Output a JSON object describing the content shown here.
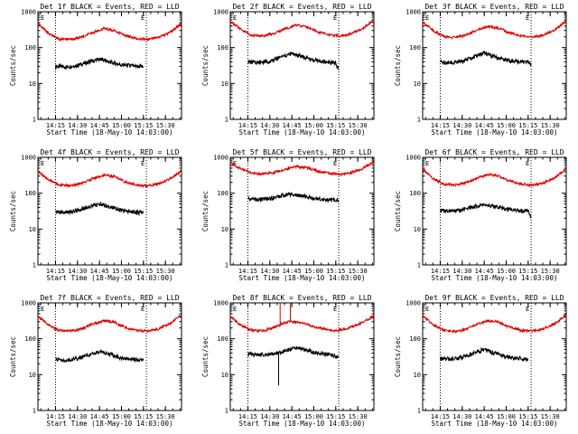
{
  "chart_data": [
    {
      "type": "line",
      "title": "Det 1f BLACK = Events, RED = LLD",
      "xlabel": "Start Time (18-May-10 14:03:00)",
      "ylabel": "Counts/sec",
      "yscale": "log",
      "ylim": [
        1,
        1000
      ],
      "xlim": [
        "14:03",
        "15:41"
      ],
      "xticks": [
        "14:15",
        "14:30",
        "14:45",
        "15:00",
        "15:15",
        "15:30"
      ],
      "yticks": [
        "1",
        "10",
        "100",
        "1000"
      ],
      "day_night_marks": [
        "E",
        "E"
      ],
      "dotted_lines_at": [
        "14:15",
        "15:17"
      ],
      "series": [
        {
          "color": "#000000",
          "x": [
            "14:15",
            "14:22",
            "14:30",
            "14:38",
            "14:45",
            "14:52",
            "15:00",
            "15:08",
            "15:15"
          ],
          "values": [
            30,
            29,
            32,
            40,
            48,
            40,
            33,
            31,
            29
          ]
        },
        {
          "color": "#e00000",
          "x": [
            "14:03",
            "14:10",
            "14:18",
            "14:25",
            "14:32",
            "14:40",
            "14:48",
            "14:55",
            "15:02",
            "15:10",
            "15:18",
            "15:25",
            "15:33",
            "15:41"
          ],
          "values": [
            480,
            250,
            170,
            170,
            190,
            260,
            340,
            300,
            220,
            180,
            170,
            190,
            260,
            480
          ]
        }
      ]
    },
    {
      "type": "line",
      "title": "Det 2f BLACK = Events, RED = LLD",
      "xlabel": "Start Time (18-May-10 14:03:00)",
      "ylabel": "Counts/sec",
      "yscale": "log",
      "ylim": [
        1,
        1000
      ],
      "xlim": [
        "14:03",
        "15:41"
      ],
      "xticks": [
        "14:15",
        "14:30",
        "14:45",
        "15:00",
        "15:15",
        "15:30"
      ],
      "yticks": [
        "1",
        "10",
        "100",
        "1000"
      ],
      "day_night_marks": [
        "E",
        "E"
      ],
      "dotted_lines_at": [
        "14:15",
        "15:17"
      ],
      "series": [
        {
          "color": "#000000",
          "x": [
            "14:15",
            "14:22",
            "14:30",
            "14:38",
            "14:45",
            "14:52",
            "15:00",
            "15:08",
            "15:15",
            "15:17"
          ],
          "values": [
            40,
            38,
            42,
            55,
            68,
            55,
            44,
            40,
            38,
            24
          ]
        },
        {
          "color": "#e00000",
          "x": [
            "14:03",
            "14:10",
            "14:18",
            "14:25",
            "14:32",
            "14:40",
            "14:48",
            "14:55",
            "15:02",
            "15:10",
            "15:18",
            "15:25",
            "15:33",
            "15:41"
          ],
          "values": [
            560,
            320,
            220,
            210,
            240,
            330,
            420,
            380,
            280,
            230,
            210,
            240,
            330,
            600
          ]
        }
      ]
    },
    {
      "type": "line",
      "title": "Det 3f BLACK = Events, RED = LLD",
      "xlabel": "Start Time (18-May-10 14:03:00)",
      "ylabel": "Counts/sec",
      "yscale": "log",
      "ylim": [
        1,
        1000
      ],
      "xlim": [
        "14:03",
        "15:41"
      ],
      "xticks": [
        "14:15",
        "14:30",
        "14:45",
        "15:00",
        "15:15",
        "15:30"
      ],
      "yticks": [
        "1",
        "10",
        "100",
        "1000"
      ],
      "day_night_marks": [
        "E",
        "E"
      ],
      "dotted_lines_at": [
        "14:15",
        "15:17"
      ],
      "series": [
        {
          "color": "#000000",
          "x": [
            "14:15",
            "14:22",
            "14:30",
            "14:38",
            "14:45",
            "14:52",
            "15:00",
            "15:08",
            "15:15",
            "15:17"
          ],
          "values": [
            40,
            38,
            42,
            55,
            70,
            55,
            45,
            41,
            39,
            35
          ]
        },
        {
          "color": "#e00000",
          "x": [
            "14:03",
            "14:10",
            "14:18",
            "14:25",
            "14:32",
            "14:40",
            "14:48",
            "14:55",
            "15:02",
            "15:10",
            "15:18",
            "15:25",
            "15:33",
            "15:41"
          ],
          "values": [
            520,
            300,
            200,
            190,
            220,
            310,
            390,
            350,
            260,
            210,
            200,
            220,
            310,
            560
          ]
        }
      ]
    },
    {
      "type": "line",
      "title": "Det 4f BLACK = Events, RED = LLD",
      "xlabel": "Start Time (18-May-10 14:03:00)",
      "ylabel": "Counts/sec",
      "yscale": "log",
      "ylim": [
        1,
        1000
      ],
      "xlim": [
        "14:03",
        "15:41"
      ],
      "xticks": [
        "14:15",
        "14:30",
        "14:45",
        "15:00",
        "15:15",
        "15:30"
      ],
      "yticks": [
        "1",
        "10",
        "100",
        "1000"
      ],
      "day_night_marks": [
        "E",
        "E"
      ],
      "dotted_lines_at": [
        "14:15",
        "15:17"
      ],
      "series": [
        {
          "color": "#000000",
          "x": [
            "14:15",
            "14:22",
            "14:30",
            "14:38",
            "14:45",
            "14:52",
            "15:00",
            "15:08",
            "15:15"
          ],
          "values": [
            30,
            29,
            33,
            42,
            50,
            42,
            33,
            30,
            28
          ]
        },
        {
          "color": "#e00000",
          "x": [
            "14:03",
            "14:10",
            "14:18",
            "14:25",
            "14:32",
            "14:40",
            "14:48",
            "14:55",
            "15:02",
            "15:10",
            "15:18",
            "15:25",
            "15:33",
            "15:41"
          ],
          "values": [
            420,
            240,
            170,
            165,
            185,
            250,
            320,
            290,
            210,
            170,
            160,
            180,
            250,
            420
          ]
        }
      ]
    },
    {
      "type": "line",
      "title": "Det 5f BLACK = Events, RED = LLD",
      "xlabel": "Start Time (18-May-10 14:03:00)",
      "ylabel": "Counts/sec",
      "yscale": "log",
      "ylim": [
        1,
        1000
      ],
      "xlim": [
        "14:03",
        "15:41"
      ],
      "xticks": [
        "14:15",
        "14:30",
        "14:45",
        "15:00",
        "15:15",
        "15:30"
      ],
      "yticks": [
        "1",
        "10",
        "100",
        "1000"
      ],
      "day_night_marks": [
        "E",
        "E"
      ],
      "dotted_lines_at": [
        "14:15",
        "15:17"
      ],
      "series": [
        {
          "color": "#000000",
          "x": [
            "14:15",
            "14:22",
            "14:30",
            "14:38",
            "14:45",
            "14:52",
            "15:00",
            "15:08",
            "15:15",
            "15:17"
          ],
          "values": [
            70,
            66,
            70,
            85,
            95,
            85,
            72,
            66,
            63,
            60
          ]
        },
        {
          "color": "#e00000",
          "x": [
            "14:03",
            "14:10",
            "14:18",
            "14:25",
            "14:32",
            "14:40",
            "14:48",
            "14:55",
            "15:02",
            "15:10",
            "15:18",
            "15:25",
            "15:33",
            "15:41"
          ],
          "values": [
            700,
            480,
            360,
            340,
            370,
            460,
            560,
            520,
            420,
            360,
            340,
            370,
            470,
            760
          ]
        }
      ]
    },
    {
      "type": "line",
      "title": "Det 6f BLACK = Events, RED = LLD",
      "xlabel": "Start Time (18-May-10 14:03:00)",
      "ylabel": "Counts/sec",
      "yscale": "log",
      "ylim": [
        1,
        1000
      ],
      "xlim": [
        "14:03",
        "15:41"
      ],
      "xticks": [
        "14:15",
        "14:30",
        "14:45",
        "15:00",
        "15:15",
        "15:30"
      ],
      "yticks": [
        "1",
        "10",
        "100",
        "1000"
      ],
      "day_night_marks": [
        "E",
        "E"
      ],
      "dotted_lines_at": [
        "14:15",
        "15:17"
      ],
      "series": [
        {
          "color": "#000000",
          "x": [
            "14:15",
            "14:22",
            "14:30",
            "14:38",
            "14:45",
            "14:52",
            "15:00",
            "15:08",
            "15:15",
            "15:17"
          ],
          "values": [
            33,
            31,
            34,
            42,
            50,
            43,
            36,
            33,
            31,
            21
          ]
        },
        {
          "color": "#e00000",
          "x": [
            "14:03",
            "14:10",
            "14:18",
            "14:25",
            "14:32",
            "14:40",
            "14:48",
            "14:55",
            "15:02",
            "15:10",
            "15:18",
            "15:25",
            "15:33",
            "15:41"
          ],
          "values": [
            470,
            260,
            175,
            170,
            190,
            260,
            340,
            300,
            220,
            180,
            170,
            190,
            270,
            480
          ]
        }
      ]
    },
    {
      "type": "line",
      "title": "Det 7f BLACK = Events, RED = LLD",
      "xlabel": "Start Time (18-May-10 14:03:00)",
      "ylabel": "Counts/sec",
      "yscale": "log",
      "ylim": [
        1,
        1000
      ],
      "xlim": [
        "14:03",
        "15:41"
      ],
      "xticks": [
        "14:15",
        "14:30",
        "14:45",
        "15:00",
        "15:15",
        "15:30"
      ],
      "yticks": [
        "1",
        "10",
        "100",
        "1000"
      ],
      "day_night_marks": [
        "E",
        "E"
      ],
      "dotted_lines_at": [
        "14:15",
        "15:17"
      ],
      "series": [
        {
          "color": "#000000",
          "x": [
            "14:15",
            "14:22",
            "14:30",
            "14:38",
            "14:45",
            "14:52",
            "15:00",
            "15:08",
            "15:15"
          ],
          "values": [
            27,
            25,
            28,
            36,
            44,
            37,
            29,
            27,
            25
          ]
        },
        {
          "color": "#e00000",
          "x": [
            "14:03",
            "14:10",
            "14:18",
            "14:25",
            "14:32",
            "14:40",
            "14:48",
            "14:55",
            "15:02",
            "15:10",
            "15:18",
            "15:25",
            "15:33",
            "15:41"
          ],
          "values": [
            420,
            240,
            170,
            165,
            185,
            250,
            320,
            290,
            210,
            170,
            165,
            185,
            260,
            470
          ]
        }
      ]
    },
    {
      "type": "line",
      "title": "Det 8f BLACK = Events, RED = LLD",
      "xlabel": "Start Time (18-May-10 14:03:00)",
      "ylabel": "Counts/sec",
      "yscale": "log",
      "ylim": [
        1,
        1000
      ],
      "xlim": [
        "14:03",
        "15:41"
      ],
      "xticks": [
        "14:15",
        "14:30",
        "14:45",
        "15:00",
        "15:15",
        "15:30"
      ],
      "yticks": [
        "1",
        "10",
        "100",
        "1000"
      ],
      "day_night_marks": [
        "E",
        "E"
      ],
      "dotted_lines_at": [
        "14:15",
        "15:17"
      ],
      "series": [
        {
          "color": "#000000",
          "x": [
            "14:15",
            "14:22",
            "14:30",
            "14:36",
            "14:36",
            "14:36",
            "14:42",
            "14:48",
            "14:55",
            "15:02",
            "15:10",
            "15:17"
          ],
          "values": [
            38,
            35,
            38,
            40,
            5,
            40,
            48,
            55,
            48,
            40,
            36,
            30
          ]
        },
        {
          "color": "#e00000",
          "x": [
            "14:03",
            "14:10",
            "14:18",
            "14:25",
            "14:32",
            "14:37",
            "14:37",
            "14:37",
            "14:44",
            "14:44",
            "14:44",
            "14:52",
            "15:00",
            "15:08",
            "15:15",
            "15:22",
            "15:30",
            "15:41"
          ],
          "values": [
            420,
            240,
            170,
            165,
            200,
            240,
            1000,
            260,
            300,
            1000,
            300,
            280,
            220,
            180,
            170,
            185,
            250,
            420
          ]
        }
      ]
    },
    {
      "type": "line",
      "title": "Det 9f BLACK = Events, RED = LLD",
      "xlabel": "Start Time (18-May-10 14:03:00)",
      "ylabel": "Counts/sec",
      "yscale": "log",
      "ylim": [
        1,
        1000
      ],
      "xlim": [
        "14:03",
        "15:41"
      ],
      "xticks": [
        "14:15",
        "14:30",
        "14:45",
        "15:00",
        "15:15",
        "15:30"
      ],
      "yticks": [
        "1",
        "10",
        "100",
        "1000"
      ],
      "day_night_marks": [
        "E",
        "E"
      ],
      "dotted_lines_at": [
        "14:15",
        "15:17"
      ],
      "series": [
        {
          "color": "#000000",
          "x": [
            "14:15",
            "14:22",
            "14:30",
            "14:38",
            "14:45",
            "14:52",
            "15:00",
            "15:08",
            "15:15"
          ],
          "values": [
            28,
            27,
            30,
            40,
            50,
            40,
            31,
            29,
            27
          ]
        },
        {
          "color": "#e00000",
          "x": [
            "14:03",
            "14:10",
            "14:18",
            "14:25",
            "14:32",
            "14:40",
            "14:48",
            "14:55",
            "15:02",
            "15:10",
            "15:18",
            "15:25",
            "15:33",
            "15:41"
          ],
          "values": [
            450,
            250,
            170,
            160,
            180,
            250,
            320,
            290,
            210,
            170,
            165,
            185,
            260,
            470
          ]
        }
      ]
    }
  ]
}
